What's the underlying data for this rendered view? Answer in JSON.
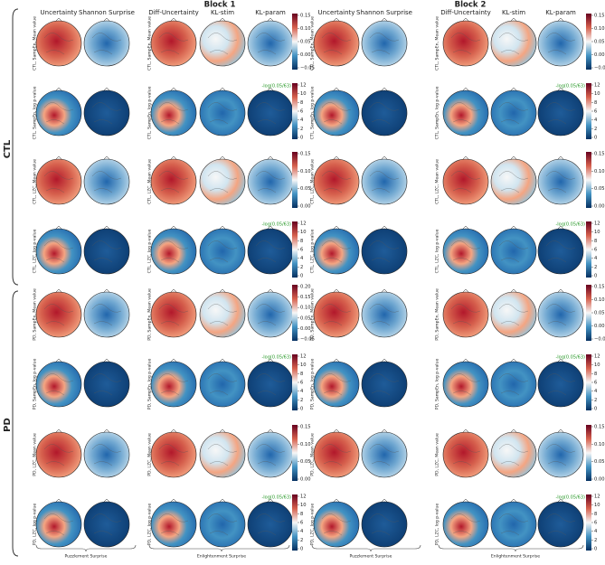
{
  "blocks": [
    "Block 1",
    "Block 2"
  ],
  "groups": [
    "CTL",
    "PD"
  ],
  "columns": [
    "Uncertainty",
    "Shannon Surprise",
    "Diff-Uncertainty",
    "KL-stim",
    "KL-param"
  ],
  "footers": [
    "Puzzlement Surprise",
    "Enlightenment Surprise"
  ],
  "threshold_label": "-log(0.05/63)",
  "rows": [
    {
      "label": "CTL, SampEn, Mean value",
      "kind": "mean",
      "ticks": [
        [
          "0.15",
          "0.10",
          "0.05",
          "0.00",
          "−0.05"
        ],
        [
          "0.15",
          "0.10",
          "0.05",
          "0.00",
          "−0.05"
        ]
      ]
    },
    {
      "label": "CTL, SampEn, log p-value",
      "kind": "p",
      "ticks": [
        [
          "12",
          "10",
          "8",
          "6",
          "4",
          "2",
          "0"
        ],
        [
          "12",
          "10",
          "8",
          "6",
          "4",
          "2",
          "0"
        ]
      ]
    },
    {
      "label": "CTL, LZC, Mean value",
      "kind": "mean",
      "ticks": [
        [
          "0.15",
          "0.10",
          "0.05",
          "0.00"
        ],
        [
          "0.15",
          "0.10",
          "0.05",
          "0.00"
        ]
      ]
    },
    {
      "label": "CTL, LZC, log p-value",
      "kind": "p",
      "ticks": [
        [
          "12",
          "10",
          "8",
          "6",
          "4",
          "2",
          "0"
        ],
        [
          "12",
          "10",
          "8",
          "6",
          "4",
          "2",
          "0"
        ]
      ]
    },
    {
      "label": "PD, SampEn, Mean value",
      "kind": "mean",
      "ticks": [
        [
          "0.20",
          "0.15",
          "0.10",
          "0.05",
          "0.00",
          "−0.05"
        ],
        [
          "0.15",
          "0.10",
          "0.05",
          "0.00",
          "−0.05"
        ]
      ]
    },
    {
      "label": "PD, SampEn, log p-value",
      "kind": "p",
      "ticks": [
        [
          "12",
          "10",
          "8",
          "6",
          "4",
          "2",
          "0"
        ],
        [
          "12",
          "10",
          "8",
          "6",
          "4",
          "2",
          "0"
        ]
      ]
    },
    {
      "label": "PD, LZC, Mean value",
      "kind": "mean",
      "ticks": [
        [
          "0.15",
          "0.10",
          "0.05",
          "0.00"
        ],
        [
          "0.15",
          "0.10",
          "0.05",
          "0.00"
        ]
      ]
    },
    {
      "label": "PD, LZC, log p-value",
      "kind": "p",
      "ticks": [
        [
          "12",
          "10",
          "8",
          "6",
          "4",
          "2",
          "0"
        ],
        [
          "12",
          "10",
          "8",
          "6",
          "4",
          "2",
          "0"
        ]
      ]
    }
  ]
}
